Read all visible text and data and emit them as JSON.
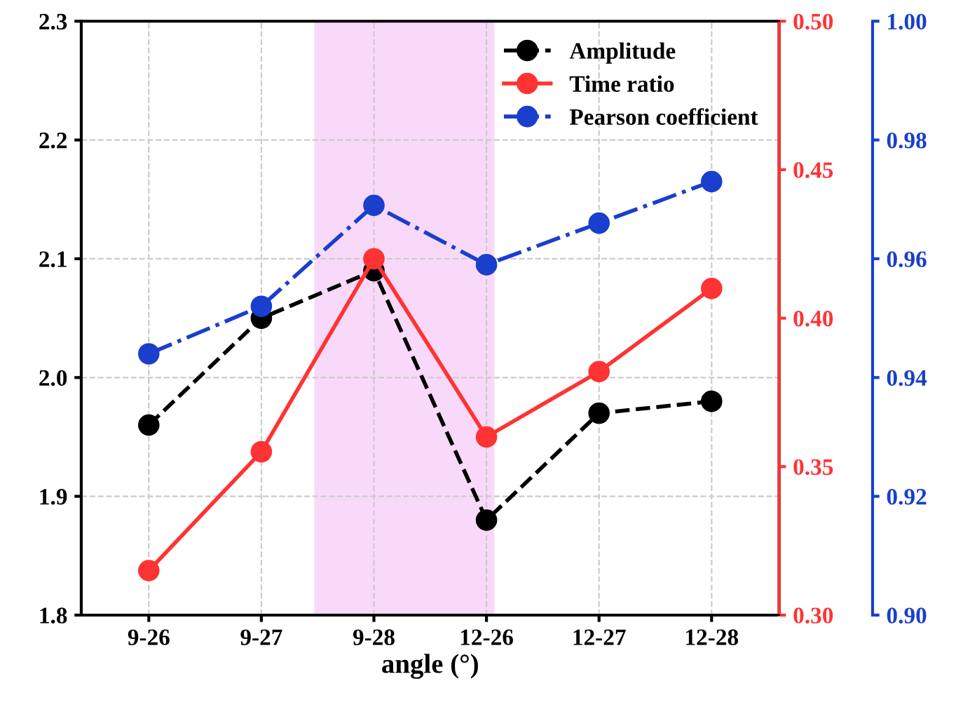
{
  "chart_data": {
    "type": "line",
    "xlabel": "angle (°)",
    "categories": [
      "9-26",
      "9-27",
      "9-28",
      "12-26",
      "12-27",
      "12-28"
    ],
    "series": [
      {
        "name": "Amplitude",
        "color": "#000000",
        "line_style": "dashed",
        "values": [
          1.96,
          2.05,
          2.09,
          1.88,
          1.97,
          1.98
        ]
      },
      {
        "name": "Time ratio",
        "color": "#ff3333",
        "line_style": "solid",
        "axis": "y2",
        "values": [
          0.315,
          0.355,
          0.42,
          0.36,
          0.382,
          0.41
        ]
      },
      {
        "name": "Pearson coefficient",
        "color": "#1a3fcc",
        "line_style": "dashdot",
        "axis": "y3",
        "values": [
          0.944,
          0.952,
          0.969,
          0.959,
          0.966,
          0.973
        ]
      }
    ],
    "ylim": [
      1.8,
      2.3
    ],
    "yticks": [
      1.8,
      1.9,
      {
        "value": 2,
        "label": "2.0"
      },
      2.1,
      2.2,
      2.3
    ],
    "y2lim": [
      0.3,
      0.5
    ],
    "y2ticks": [
      {
        "value": 0.3,
        "label": "0.30"
      },
      0.35,
      {
        "value": 0.4,
        "label": "0.40"
      },
      0.45,
      {
        "value": 0.5,
        "label": "0.50"
      }
    ],
    "y3lim": [
      0.9,
      1.0
    ],
    "y3ticks": [
      {
        "value": 0.9,
        "label": "0.90"
      },
      0.92,
      0.94,
      0.96,
      0.98,
      {
        "value": 1,
        "label": "1.00"
      }
    ],
    "marker": "circle",
    "grid": true,
    "legend": "top right"
  }
}
